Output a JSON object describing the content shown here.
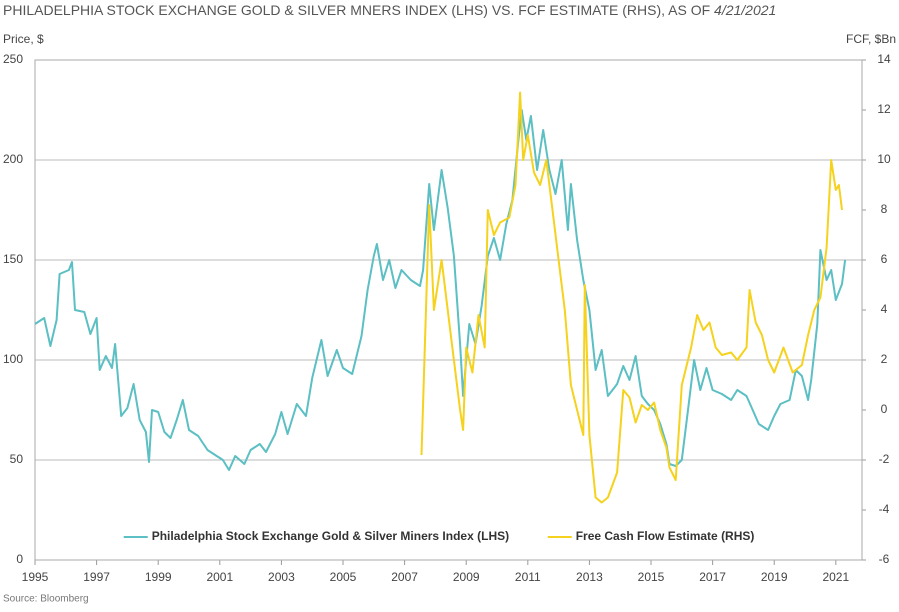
{
  "chart_data": {
    "type": "line",
    "title": "PHILADELPHIA STOCK EXCHANGE GOLD & SILVER MNERS INDEX (LHS) VS. FCF ESTIMATE (RHS), AS OF",
    "title_date": "4/21/2021",
    "y_label": "Price, $",
    "y2_label": "FCF, $Bn",
    "source": "Source: Bloomberg",
    "xlim": [
      1995,
      2021.85
    ],
    "xticks": [
      1995,
      1997,
      1999,
      2001,
      2003,
      2005,
      2007,
      2009,
      2011,
      2013,
      2015,
      2017,
      2019,
      2021
    ],
    "ylim": [
      0,
      250
    ],
    "yticks": [
      0,
      50,
      100,
      150,
      200,
      250
    ],
    "y2lim": [
      -6,
      14
    ],
    "y2ticks": [
      -6,
      -4,
      -2,
      0,
      2,
      4,
      6,
      8,
      10,
      12,
      14
    ],
    "grid": true,
    "legend": "lower center",
    "series": [
      {
        "name": "Philadelphia Stock Exchange Gold & Silver Miners Index (LHS)",
        "color": "#5bbfc3",
        "axis": "y",
        "x": [
          1995.0,
          1995.3,
          1995.5,
          1995.7,
          1995.8,
          1996.1,
          1996.2,
          1996.3,
          1996.6,
          1996.8,
          1997.0,
          1997.1,
          1997.3,
          1997.5,
          1997.6,
          1997.8,
          1998.0,
          1998.2,
          1998.4,
          1998.6,
          1998.7,
          1998.8,
          1999.0,
          1999.2,
          1999.4,
          1999.6,
          1999.8,
          2000.0,
          2000.3,
          2000.6,
          2000.9,
          2001.1,
          2001.3,
          2001.5,
          2001.8,
          2002.0,
          2002.3,
          2002.5,
          2002.8,
          2003.0,
          2003.2,
          2003.5,
          2003.8,
          2004.0,
          2004.3,
          2004.5,
          2004.8,
          2005.0,
          2005.3,
          2005.6,
          2005.8,
          2006.0,
          2006.1,
          2006.3,
          2006.5,
          2006.7,
          2006.9,
          2007.2,
          2007.5,
          2007.6,
          2007.8,
          2007.95,
          2008.2,
          2008.4,
          2008.6,
          2008.8,
          2008.9,
          2009.1,
          2009.3,
          2009.5,
          2009.7,
          2009.9,
          2010.1,
          2010.3,
          2010.5,
          2010.7,
          2010.8,
          2010.95,
          2011.1,
          2011.3,
          2011.5,
          2011.7,
          2011.9,
          2012.1,
          2012.3,
          2012.4,
          2012.6,
          2012.8,
          2013.0,
          2013.2,
          2013.4,
          2013.6,
          2013.9,
          2014.1,
          2014.3,
          2014.5,
          2014.7,
          2014.9,
          2015.1,
          2015.3,
          2015.5,
          2015.6,
          2015.8,
          2016.0,
          2016.2,
          2016.4,
          2016.6,
          2016.8,
          2017.0,
          2017.3,
          2017.6,
          2017.8,
          2018.1,
          2018.3,
          2018.5,
          2018.8,
          2019.0,
          2019.2,
          2019.5,
          2019.7,
          2019.9,
          2020.1,
          2020.2,
          2020.4,
          2020.5,
          2020.7,
          2020.85,
          2021.0,
          2021.2,
          2021.3
        ],
        "values": [
          118,
          121,
          107,
          120,
          143,
          145,
          149,
          125,
          124,
          113,
          121,
          95,
          102,
          96,
          108,
          72,
          76,
          88,
          70,
          64,
          49,
          75,
          74,
          64,
          61,
          70,
          80,
          65,
          62,
          55,
          52,
          50,
          45,
          52,
          48,
          55,
          58,
          54,
          63,
          74,
          63,
          78,
          72,
          91,
          110,
          92,
          105,
          96,
          93,
          112,
          135,
          152,
          158,
          140,
          150,
          136,
          145,
          140,
          137,
          145,
          188,
          165,
          195,
          176,
          152,
          108,
          82,
          118,
          108,
          127,
          152,
          161,
          150,
          168,
          180,
          211,
          225,
          210,
          222,
          195,
          215,
          195,
          183,
          200,
          165,
          188,
          160,
          140,
          125,
          95,
          105,
          82,
          88,
          97,
          90,
          102,
          82,
          78,
          75,
          68,
          58,
          48,
          47,
          50,
          75,
          100,
          85,
          96,
          85,
          83,
          80,
          85,
          82,
          75,
          68,
          65,
          72,
          78,
          80,
          95,
          92,
          80,
          90,
          118,
          155,
          140,
          145,
          130,
          138,
          150
        ]
      },
      {
        "name": "Free Cash Flow Estimate (RHS)",
        "color": "#f5d21d",
        "axis": "y2",
        "x": [
          2007.55,
          2007.8,
          2007.95,
          2008.2,
          2008.5,
          2008.8,
          2008.9,
          2009.0,
          2009.2,
          2009.4,
          2009.6,
          2009.7,
          2009.9,
          2010.1,
          2010.4,
          2010.6,
          2010.75,
          2010.85,
          2011.0,
          2011.2,
          2011.4,
          2011.6,
          2011.8,
          2012.0,
          2012.2,
          2012.4,
          2012.6,
          2012.8,
          2012.85,
          2013.0,
          2013.2,
          2013.4,
          2013.6,
          2013.9,
          2014.1,
          2014.3,
          2014.5,
          2014.7,
          2014.9,
          2015.1,
          2015.3,
          2015.5,
          2015.6,
          2015.8,
          2016.0,
          2016.3,
          2016.5,
          2016.7,
          2016.9,
          2017.1,
          2017.3,
          2017.6,
          2017.8,
          2018.1,
          2018.2,
          2018.4,
          2018.6,
          2018.8,
          2019.0,
          2019.3,
          2019.6,
          2019.9,
          2020.1,
          2020.3,
          2020.5,
          2020.7,
          2020.85,
          2021.0,
          2021.1,
          2021.2
        ],
        "values": [
          -1.8,
          8.2,
          4,
          6,
          3,
          0,
          -0.8,
          2.5,
          1.5,
          3.8,
          2.5,
          8,
          7,
          7.5,
          7.7,
          9,
          12.7,
          10,
          11,
          9.5,
          9,
          10,
          8,
          6,
          4,
          1,
          0,
          -1,
          5,
          -1,
          -3.5,
          -3.7,
          -3.5,
          -2.5,
          0.8,
          0.5,
          -0.5,
          0.2,
          0,
          0.3,
          -0.8,
          -1.5,
          -2.3,
          -2.8,
          1,
          2.5,
          3.8,
          3.2,
          3.5,
          2.5,
          2.2,
          2.3,
          2,
          2.5,
          4.8,
          3.5,
          3,
          2,
          1.5,
          2.5,
          1.5,
          1.8,
          3,
          4,
          4.5,
          6.5,
          10,
          8.8,
          9,
          8
        ]
      }
    ]
  }
}
